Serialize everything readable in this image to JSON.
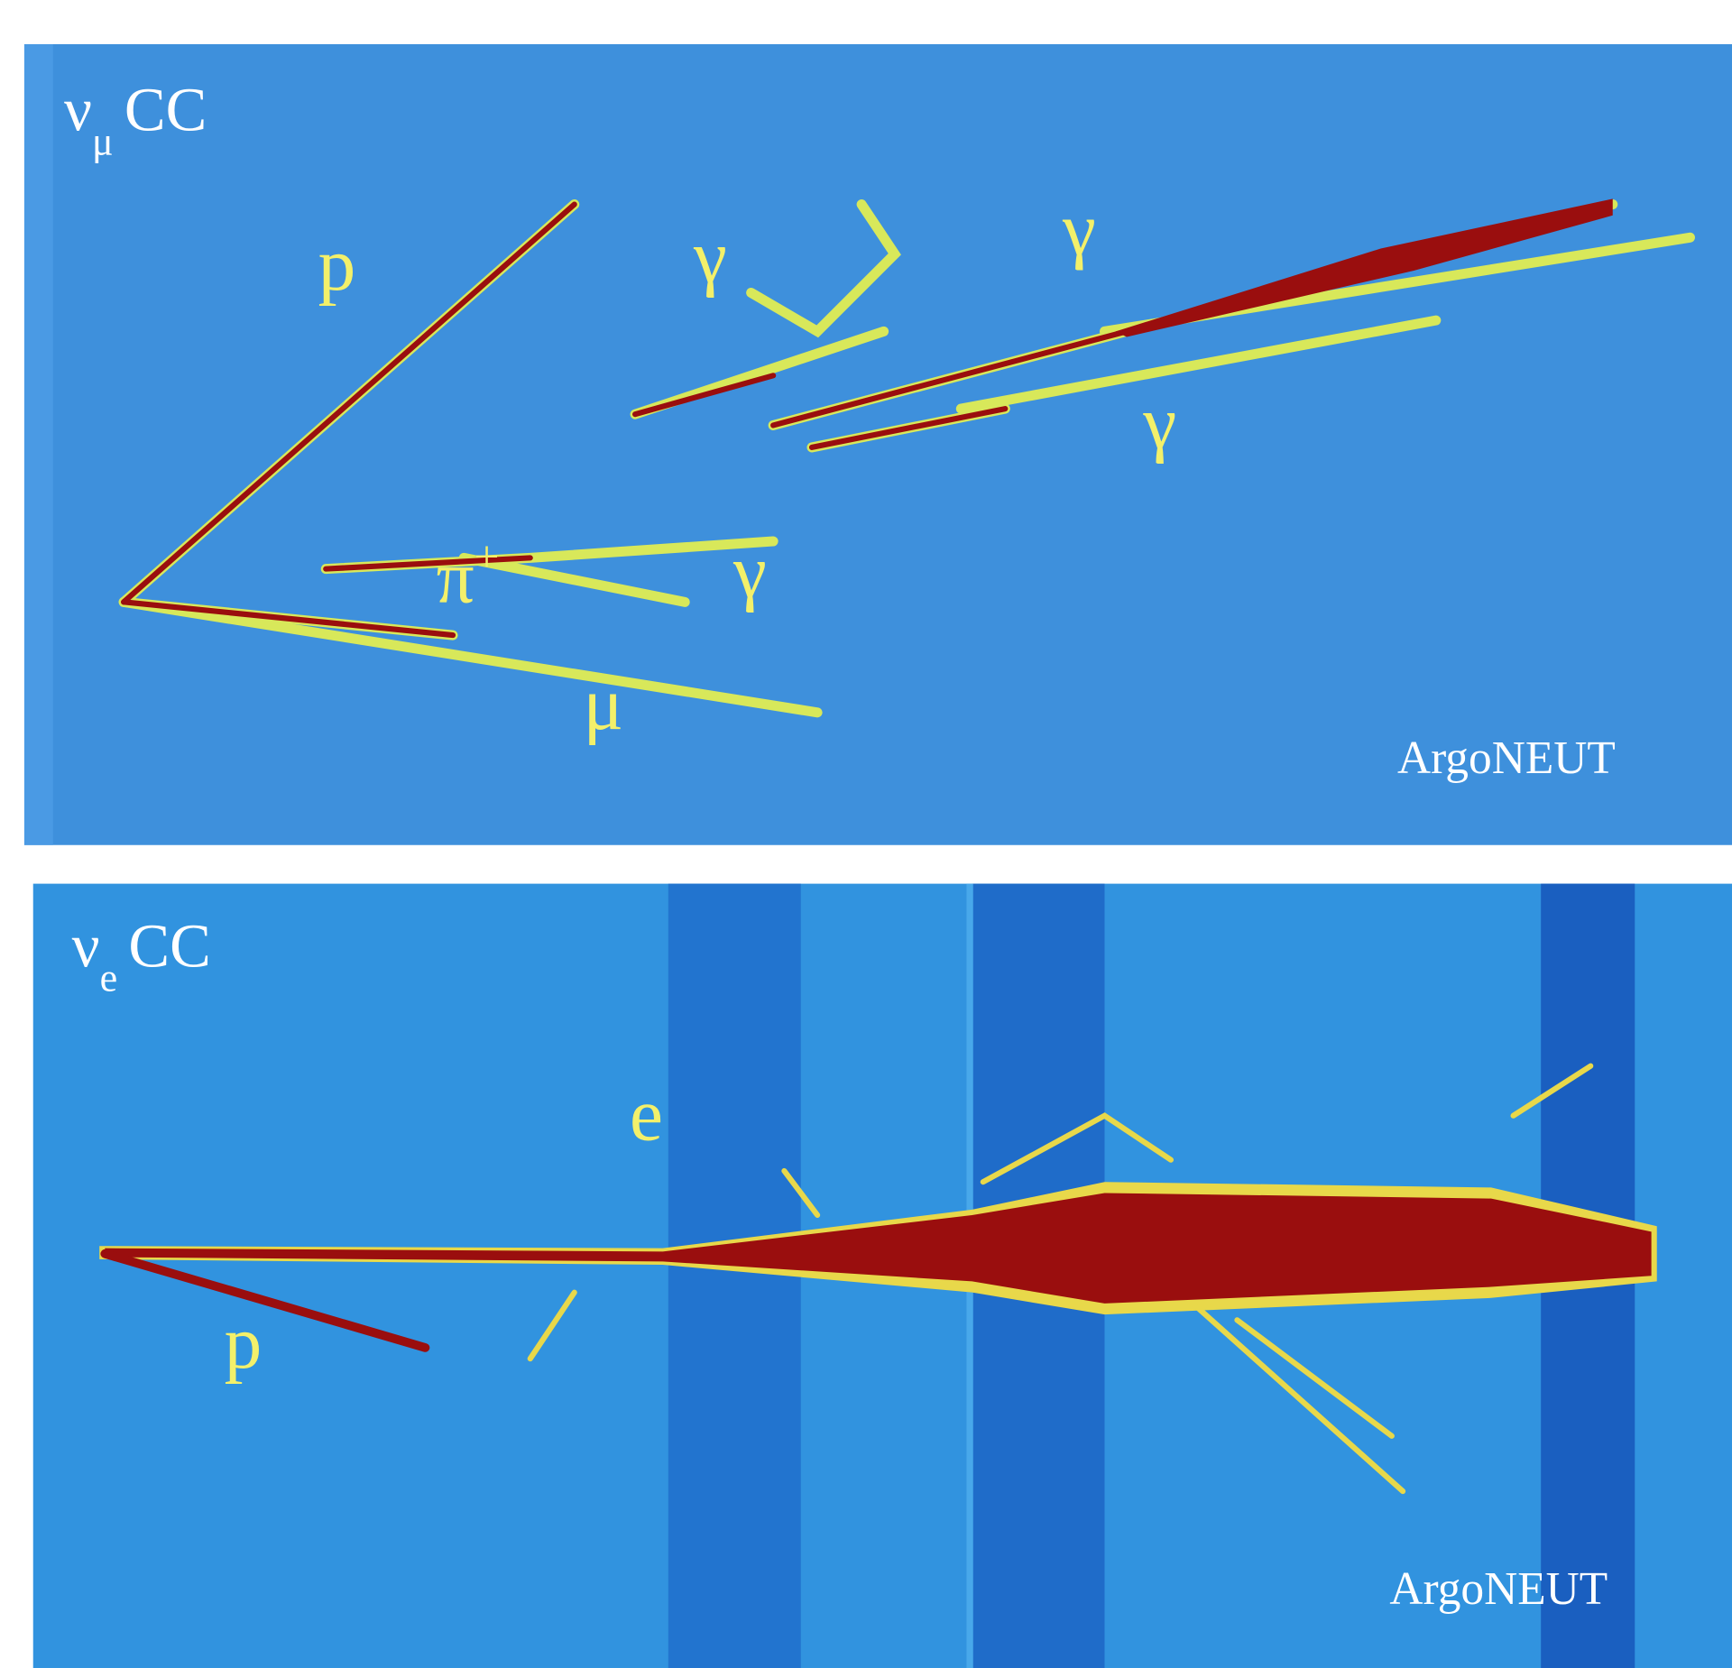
{
  "panels": [
    {
      "title": {
        "symbol": "ν",
        "subscript": "μ",
        "text": "CC"
      },
      "labels": [
        {
          "text": "p"
        },
        {
          "text": "γ"
        },
        {
          "text": "γ"
        },
        {
          "text": "γ"
        },
        {
          "text": "γ"
        },
        {
          "text": "π",
          "superscript": "+"
        },
        {
          "text": "μ"
        }
      ],
      "watermark": "ArgoNEUT"
    },
    {
      "title": {
        "symbol": "ν",
        "subscript": "e",
        "text": "CC"
      },
      "labels": [
        {
          "text": "e"
        },
        {
          "text": "p"
        }
      ],
      "watermark": "ArgoNEUT"
    }
  ]
}
